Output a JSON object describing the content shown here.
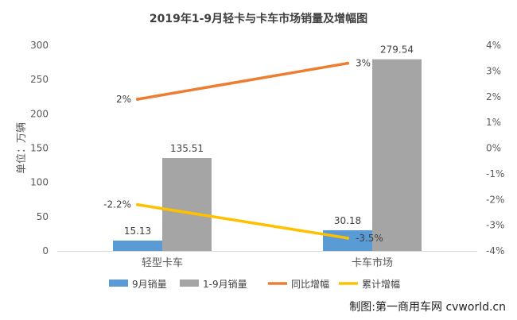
{
  "chart_data": {
    "type": "bar",
    "title": "2019年1-9月轻卡与卡车市场销量及增幅图",
    "ylabel": "单位：万辆",
    "categories": [
      "轻型卡车",
      "卡车市场"
    ],
    "y_left": {
      "ticks": [
        0,
        50,
        100,
        150,
        200,
        250,
        300
      ],
      "lim": [
        0,
        300
      ]
    },
    "y_right": {
      "ticks": [
        "4%",
        "3%",
        "2%",
        "1%",
        "0%",
        "-1%",
        "-2%",
        "-3%",
        "-4%"
      ],
      "lim": [
        -4,
        4
      ]
    },
    "bars": [
      {
        "name": "9月销量",
        "color": "#5b9bd5",
        "values": [
          15.13,
          30.18
        ],
        "labels": [
          "15.13",
          "30.18"
        ]
      },
      {
        "name": "1-9月销量",
        "color": "#a5a5a5",
        "values": [
          135.51,
          279.54
        ],
        "labels": [
          "135.51",
          "279.54"
        ]
      }
    ],
    "lines": [
      {
        "name": "同比增幅",
        "color": "#ed7d31",
        "values": [
          1.9,
          3.3
        ],
        "labels": [
          "2%",
          "3%"
        ]
      },
      {
        "name": "累计增幅",
        "color": "#ffc000",
        "values": [
          -2.2,
          -3.5
        ],
        "labels": [
          "-2.2%",
          "-3.5%"
        ]
      }
    ],
    "grid": false,
    "legend": "bottom"
  },
  "watermark": "制图:第一商用车网 cvworld.cn"
}
